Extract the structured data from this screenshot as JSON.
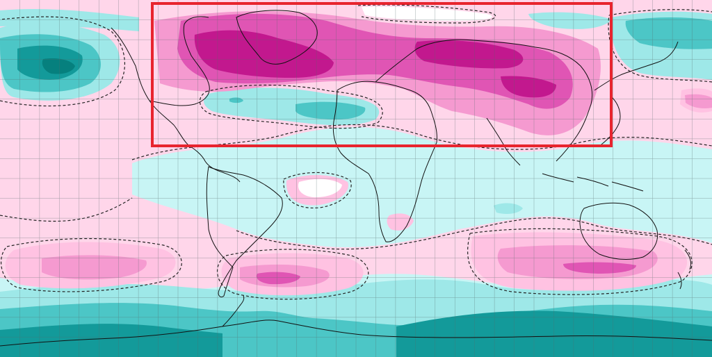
{
  "map": {
    "projection": "equirectangular",
    "graticule_step_degrees": 10,
    "region_box_color": "#e8242e",
    "palette": {
      "ocean_base": "#ffd6ea",
      "pink_light": "#ffc2e2",
      "pink_mid": "#f59ad0",
      "pink_strong": "#e055b4",
      "pink_deep": "#c2188e",
      "cyan_pale": "#c8f5f5",
      "teal_light": "#9ee8e8",
      "teal_mid": "#4cc6c6",
      "teal_deep": "#139a9a",
      "teal_darkest": "#06807e",
      "white_band": "#ffffff",
      "coastline": "#111111",
      "graticule": "#556b6b"
    },
    "highlighted_region": {
      "description_visible": false,
      "lon_range_deg": [
        -104,
        130
      ],
      "lat_range_deg": [
        20,
        90
      ]
    }
  }
}
